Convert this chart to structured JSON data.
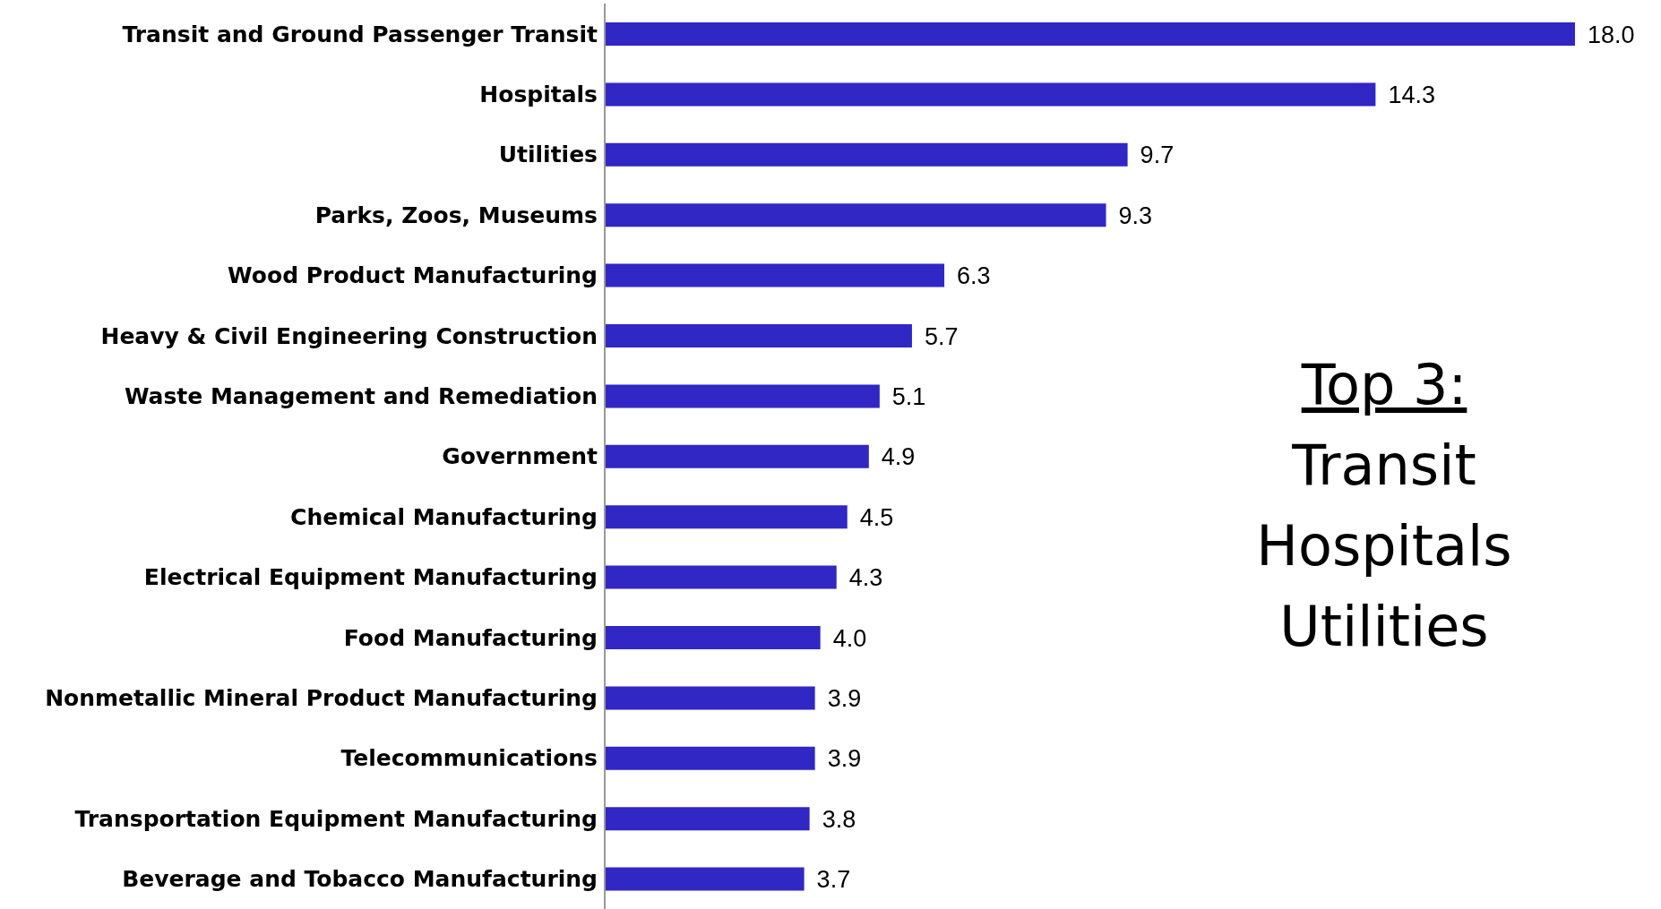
{
  "chart_data": {
    "type": "bar",
    "orientation": "horizontal",
    "color": "#3127c4",
    "value_labels": [
      "18.0",
      "14.3",
      "9.7",
      "9.3",
      "6.3",
      "5.7",
      "5.1",
      "4.9",
      "4.5",
      "4.3",
      "4.0",
      "3.9",
      "3.9",
      "3.8",
      "3.7"
    ],
    "categories": [
      "Transit and Ground Passenger Transit",
      "Hospitals",
      "Utilities",
      "Parks, Zoos, Museums",
      "Wood Product Manufacturing",
      "Heavy & Civil Engineering Construction",
      "Waste Management and Remediation",
      "Government",
      "Chemical Manufacturing",
      "Electrical Equipment Manufacturing",
      "Food Manufacturing",
      "Nonmetallic Mineral Product Manufacturing",
      "Telecommunications",
      "Transportation Equipment Manufacturing",
      "Beverage and Tobacco Manufacturing"
    ],
    "values": [
      18.0,
      14.3,
      9.7,
      9.3,
      6.3,
      5.7,
      5.1,
      4.9,
      4.5,
      4.3,
      4.0,
      3.9,
      3.9,
      3.8,
      3.7
    ],
    "annotations": [
      "Top 3:",
      "Transit",
      "Hospitals",
      "Utilities"
    ]
  }
}
